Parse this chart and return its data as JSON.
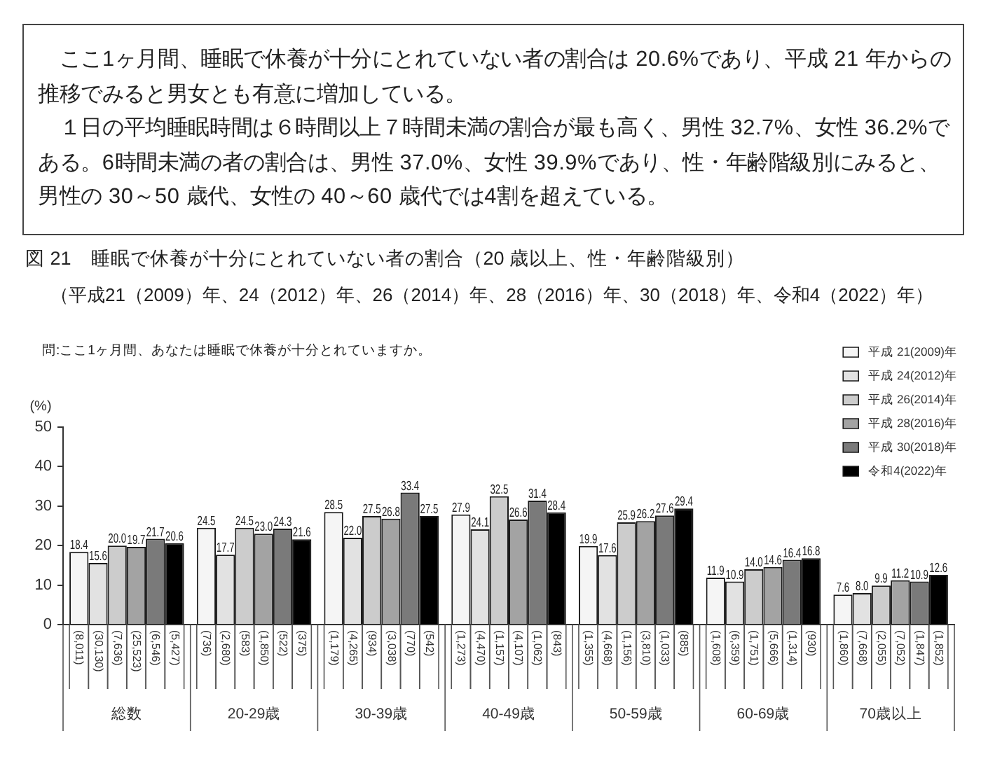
{
  "chart_data": {
    "type": "bar",
    "title": "図 21　睡眠で休養が十分にとれていない者の割合（20 歳以上、性・年齢階級別）",
    "subtitle": "（平成21（2009）年、24（2012）年、26（2014）年、28（2016）年、30（2018）年、令和4（2022）年）",
    "ylabel": "(%)",
    "categories": [
      "総数",
      "20-29歳",
      "30-39歳",
      "40-49歳",
      "50-59歳",
      "60-69歳",
      "70歳以上"
    ],
    "series": [
      {
        "name": "平成 21(2009)年",
        "color": "#f5f5f5",
        "values": [
          18.4,
          24.5,
          28.5,
          27.9,
          19.9,
          11.9,
          7.6
        ],
        "value_labels": [
          "18.4",
          "24.5",
          "28.5",
          "27.9",
          "19.9",
          "11.9",
          "7.6"
        ]
      },
      {
        "name": "平成 24(2012)年",
        "color": "#e2e2e2",
        "values": [
          15.6,
          17.7,
          22.0,
          24.1,
          17.6,
          10.9,
          8.0
        ],
        "value_labels": [
          "15.6",
          "17.7",
          "22.0",
          "24.1",
          "17.6",
          "10.9",
          "8.0"
        ]
      },
      {
        "name": "平成 26(2014)年",
        "color": "#cccccc",
        "values": [
          20.0,
          24.5,
          27.5,
          32.5,
          25.9,
          14.0,
          9.9
        ],
        "value_labels": [
          "20.0",
          "24.5",
          "27.5",
          "32.5",
          "25.9",
          "14.0",
          "9.9"
        ]
      },
      {
        "name": "平成 28(2016)年",
        "color": "#a3a3a3",
        "values": [
          19.7,
          23.0,
          26.8,
          26.6,
          26.2,
          14.6,
          11.2
        ],
        "value_labels": [
          "19.7",
          "23.0",
          "26.8",
          "26.6",
          "26.2",
          "14.6",
          "11.2"
        ]
      },
      {
        "name": "平成 30(2018)年",
        "color": "#7a7a7a",
        "values": [
          21.7,
          24.3,
          33.4,
          31.4,
          27.6,
          16.4,
          10.9
        ],
        "value_labels": [
          "21.7",
          "24.3",
          "33.4",
          "31.4",
          "27.6",
          "16.4",
          "10.9"
        ]
      },
      {
        "name": "令和4(2022)年",
        "color": "#000000",
        "values": [
          20.6,
          21.6,
          27.5,
          28.4,
          29.4,
          16.8,
          12.6
        ],
        "value_labels": [
          "20.6",
          "21.6",
          "27.5",
          "28.4",
          "29.4",
          "16.8",
          "12.6"
        ]
      }
    ],
    "ylim": [
      0,
      50
    ],
    "yticks": [
      0,
      10,
      20,
      30,
      40,
      50
    ],
    "grid": false,
    "legend": "top right",
    "annotations": [
      "ここ1ヶ月間、睡眠で休養が十分にとれていない者の割合は 20.6%であり、平成 21 年からの推移でみると男女とも有意に増加している。",
      "１日の平均睡眠時間は６時間以上７時間未満の割合が最も高く、男性 32.7%、女性 36.2%である。6時間未満の者の割合は、男性 37.0%、女性 39.9%であり、性・年齢階級別にみると、男性の 30～50 歳代、女性の 40～60 歳代では4割を超えている。",
      "問:ここ1ヶ月間、あなたは睡眠で休養が十分とれていますか。",
      "(8,011)",
      "(30,130)",
      "(7,636)",
      "(25,523)",
      "(6,546)",
      "(5,427)",
      "(736)",
      "(2,680)",
      "(583)",
      "(1,850)",
      "(522)",
      "(375)",
      "(1,179)",
      "(4,265)",
      "(934)",
      "(3,038)",
      "(770)",
      "(542)",
      "(1,273)",
      "(4,470)",
      "(1,157)",
      "(4,107)",
      "(1,062)",
      "(843)",
      "(1,355)",
      "(4,668)",
      "(1,156)",
      "(3,810)",
      "(1,033)",
      "(885)",
      "(1,608)",
      "(6,359)",
      "(1,751)",
      "(5,666)",
      "(1,314)",
      "(930)",
      "(1,860)",
      "(7,668)",
      "(2,055)",
      "(7,052)",
      "(1,847)",
      "(1,852)"
    ]
  }
}
